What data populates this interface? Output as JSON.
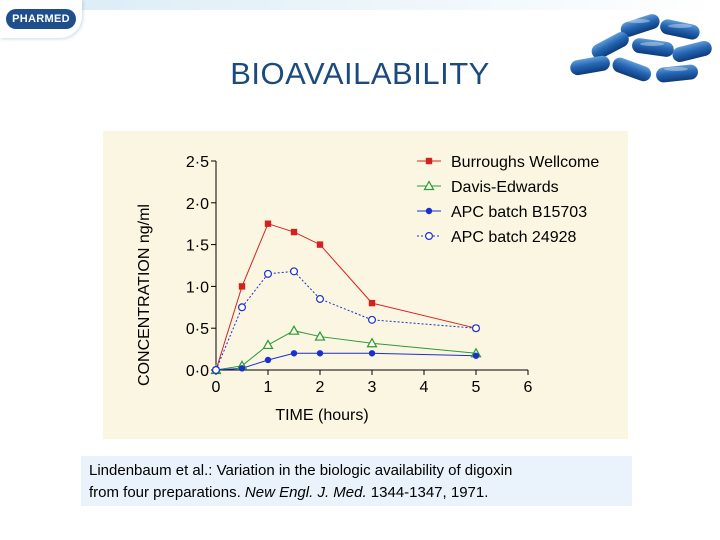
{
  "header": {
    "logo_text": "PHARMED",
    "pills_image": "blue-capsules-image"
  },
  "slide": {
    "title": "BIOAVAILABILITY"
  },
  "caption": {
    "part1": "Lindenbaum et al.: Variation in the biologic availability of digoxin",
    "part2": "from four preparations. ",
    "journal": "New Engl. J. Med.",
    "part3": " 1344-1347, 1971."
  },
  "colors": {
    "title": "#1b4a80",
    "chart_background": "#fbf6e1",
    "caption_background": "#eaf3fb"
  },
  "chart_data": {
    "type": "line",
    "xlabel": "TIME (hours)",
    "ylabel": "CONCENTRATION  ng/ml",
    "xlim": [
      0,
      6
    ],
    "ylim": [
      0,
      2.5
    ],
    "x_ticks": [
      "0",
      "1",
      "2",
      "3",
      "4",
      "5",
      "6"
    ],
    "y_ticks": [
      "0·0",
      "0·5",
      "1·0",
      "1·5",
      "2·0",
      "2·5"
    ],
    "grid": false,
    "legend_position": "top-right",
    "series": [
      {
        "name": "Burroughs Wellcome",
        "color": "#d62020",
        "marker": "square-filled",
        "line": "solid",
        "x": [
          0,
          0.5,
          1,
          1.5,
          2,
          3,
          5
        ],
        "y": [
          0,
          1.0,
          1.75,
          1.65,
          1.5,
          0.8,
          0.5
        ]
      },
      {
        "name": "Davis-Edwards",
        "color": "#2a9a3a",
        "marker": "triangle-open",
        "line": "solid",
        "x": [
          0,
          0.5,
          1,
          1.5,
          2,
          3,
          5
        ],
        "y": [
          0,
          0.05,
          0.3,
          0.47,
          0.4,
          0.32,
          0.2
        ]
      },
      {
        "name": "APC batch B15703",
        "color": "#1a2fd0",
        "marker": "circle-filled",
        "line": "solid",
        "x": [
          0,
          0.5,
          1,
          1.5,
          2,
          3,
          5
        ],
        "y": [
          0,
          0.02,
          0.12,
          0.2,
          0.2,
          0.2,
          0.17
        ]
      },
      {
        "name": "APC batch 24928",
        "color": "#1a2fd0",
        "marker": "circle-open",
        "line": "dotted",
        "x": [
          0,
          0.5,
          1,
          1.5,
          2,
          3,
          5
        ],
        "y": [
          0,
          0.75,
          1.15,
          1.18,
          0.85,
          0.6,
          0.5
        ]
      }
    ]
  }
}
